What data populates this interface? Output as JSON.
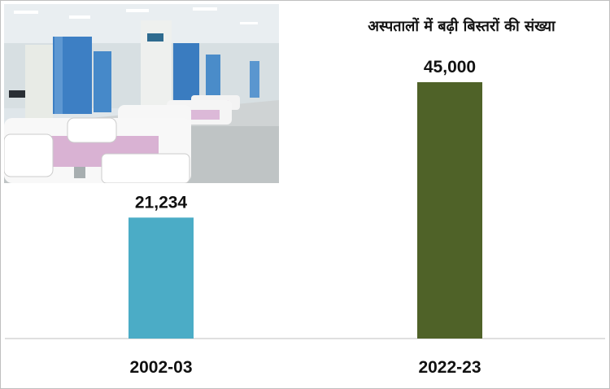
{
  "chart_data": {
    "type": "bar",
    "title": "अस्पतालों में बढ़ी बिस्तरों की संख्या",
    "categories": [
      "2002-03",
      "2022-23"
    ],
    "values": [
      21234,
      45000
    ],
    "value_labels": [
      "21,234",
      "45,000"
    ],
    "bar_colors": [
      "#4bacc6",
      "#4f6228"
    ],
    "ylim": [
      0,
      50000
    ],
    "grid": false,
    "legend": "none"
  },
  "photo": {
    "icon": "hospital-ward-photo"
  }
}
